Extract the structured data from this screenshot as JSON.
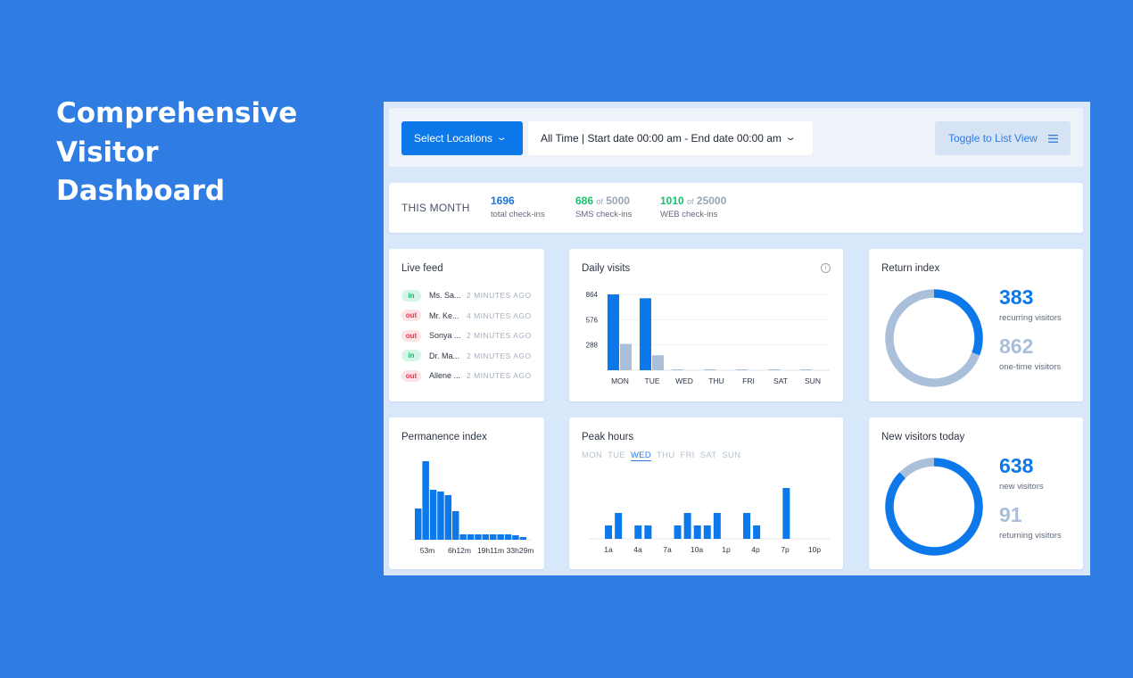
{
  "hero": {
    "lines": [
      "Comprehensive",
      "Visitor",
      "Dashboard"
    ]
  },
  "toolbar": {
    "locations_label": "Select Locations",
    "date_label": "All Time | Start date 00:00 am - End date 00:00 am",
    "toggle_label": "Toggle to List View"
  },
  "stats": {
    "period": "THIS MONTH",
    "total": {
      "value": "1696",
      "label": "total check-ins",
      "color": "#1a73d9"
    },
    "sms": {
      "value": "686",
      "of": "of",
      "max": "5000",
      "label": "SMS check-ins",
      "color": "#19c26e"
    },
    "web": {
      "value": "1010",
      "of": "of",
      "max": "25000",
      "label": "WEB check-ins",
      "color": "#19c26e"
    }
  },
  "live_feed": {
    "title": "Live feed",
    "rows": [
      {
        "status": "in",
        "name": "Ms. Sa...",
        "time": "2 MINUTES AGO"
      },
      {
        "status": "out",
        "name": "Mr. Ke...",
        "time": "4 MINUTES AGO"
      },
      {
        "status": "out",
        "name": "Sonya ...",
        "time": "2 MINUTES AGO"
      },
      {
        "status": "in",
        "name": "Dr. Ma...",
        "time": "2 MINUTES AGO"
      },
      {
        "status": "out",
        "name": "Allene ...",
        "time": "2 MINUTES AGO"
      }
    ]
  },
  "daily_visits": {
    "title": "Daily visits",
    "info_icon": "info-icon"
  },
  "return_index": {
    "title": "Return index",
    "primary_value": "383",
    "primary_label": "recurring visitors",
    "secondary_value": "862",
    "secondary_label": "one-time visitors"
  },
  "permanence_index": {
    "title": "Permanence index"
  },
  "peak_hours": {
    "title": "Peak hours",
    "days": [
      "MON",
      "TUE",
      "WED",
      "THU",
      "FRI",
      "SAT",
      "SUN"
    ],
    "active_day": "WED"
  },
  "new_visitors": {
    "title": "New visitors today",
    "primary_value": "638",
    "primary_label": "new visitors",
    "secondary_value": "91",
    "secondary_label": "returning visitors"
  },
  "colors": {
    "primary": "#0d78ea",
    "secondary": "#a9bfda",
    "accent_green": "#19c26e",
    "background": "#2f7de3"
  },
  "chart_data": [
    {
      "type": "bar",
      "title": "Daily visits",
      "categories": [
        "MON",
        "TUE",
        "WED",
        "THU",
        "FRI",
        "SAT",
        "SUN"
      ],
      "series": [
        {
          "values": [
            864,
            820,
            2,
            2,
            2,
            2,
            2
          ]
        },
        {
          "values": [
            300,
            170,
            0,
            0,
            0,
            0,
            0
          ]
        }
      ],
      "yticks": [
        288,
        576,
        864
      ],
      "ylim": [
        0,
        864
      ]
    },
    {
      "type": "pie",
      "title": "Return index",
      "categories": [
        "recurring visitors",
        "one-time visitors"
      ],
      "values": [
        383,
        862
      ]
    },
    {
      "type": "bar",
      "title": "Permanence index",
      "tick_labels": [
        "53m",
        "6h12m",
        "19h11m",
        "33h29m"
      ],
      "values": [
        35,
        88,
        56,
        54,
        50,
        32,
        6,
        6,
        6,
        6,
        6,
        6,
        6,
        5,
        3
      ]
    },
    {
      "type": "bar",
      "title": "Peak hours",
      "tick_labels": [
        "1a",
        "4a",
        "7a",
        "10a",
        "1p",
        "4p",
        "7p",
        "10p"
      ],
      "values": [
        0,
        15,
        29,
        0,
        15,
        15,
        0,
        0,
        15,
        29,
        15,
        15,
        29,
        0,
        0,
        29,
        15,
        0,
        0,
        57,
        0,
        0,
        0,
        0
      ],
      "ylim": [
        0,
        60
      ]
    },
    {
      "type": "pie",
      "title": "New visitors today",
      "categories": [
        "new visitors",
        "returning visitors"
      ],
      "values": [
        638,
        91
      ]
    }
  ]
}
